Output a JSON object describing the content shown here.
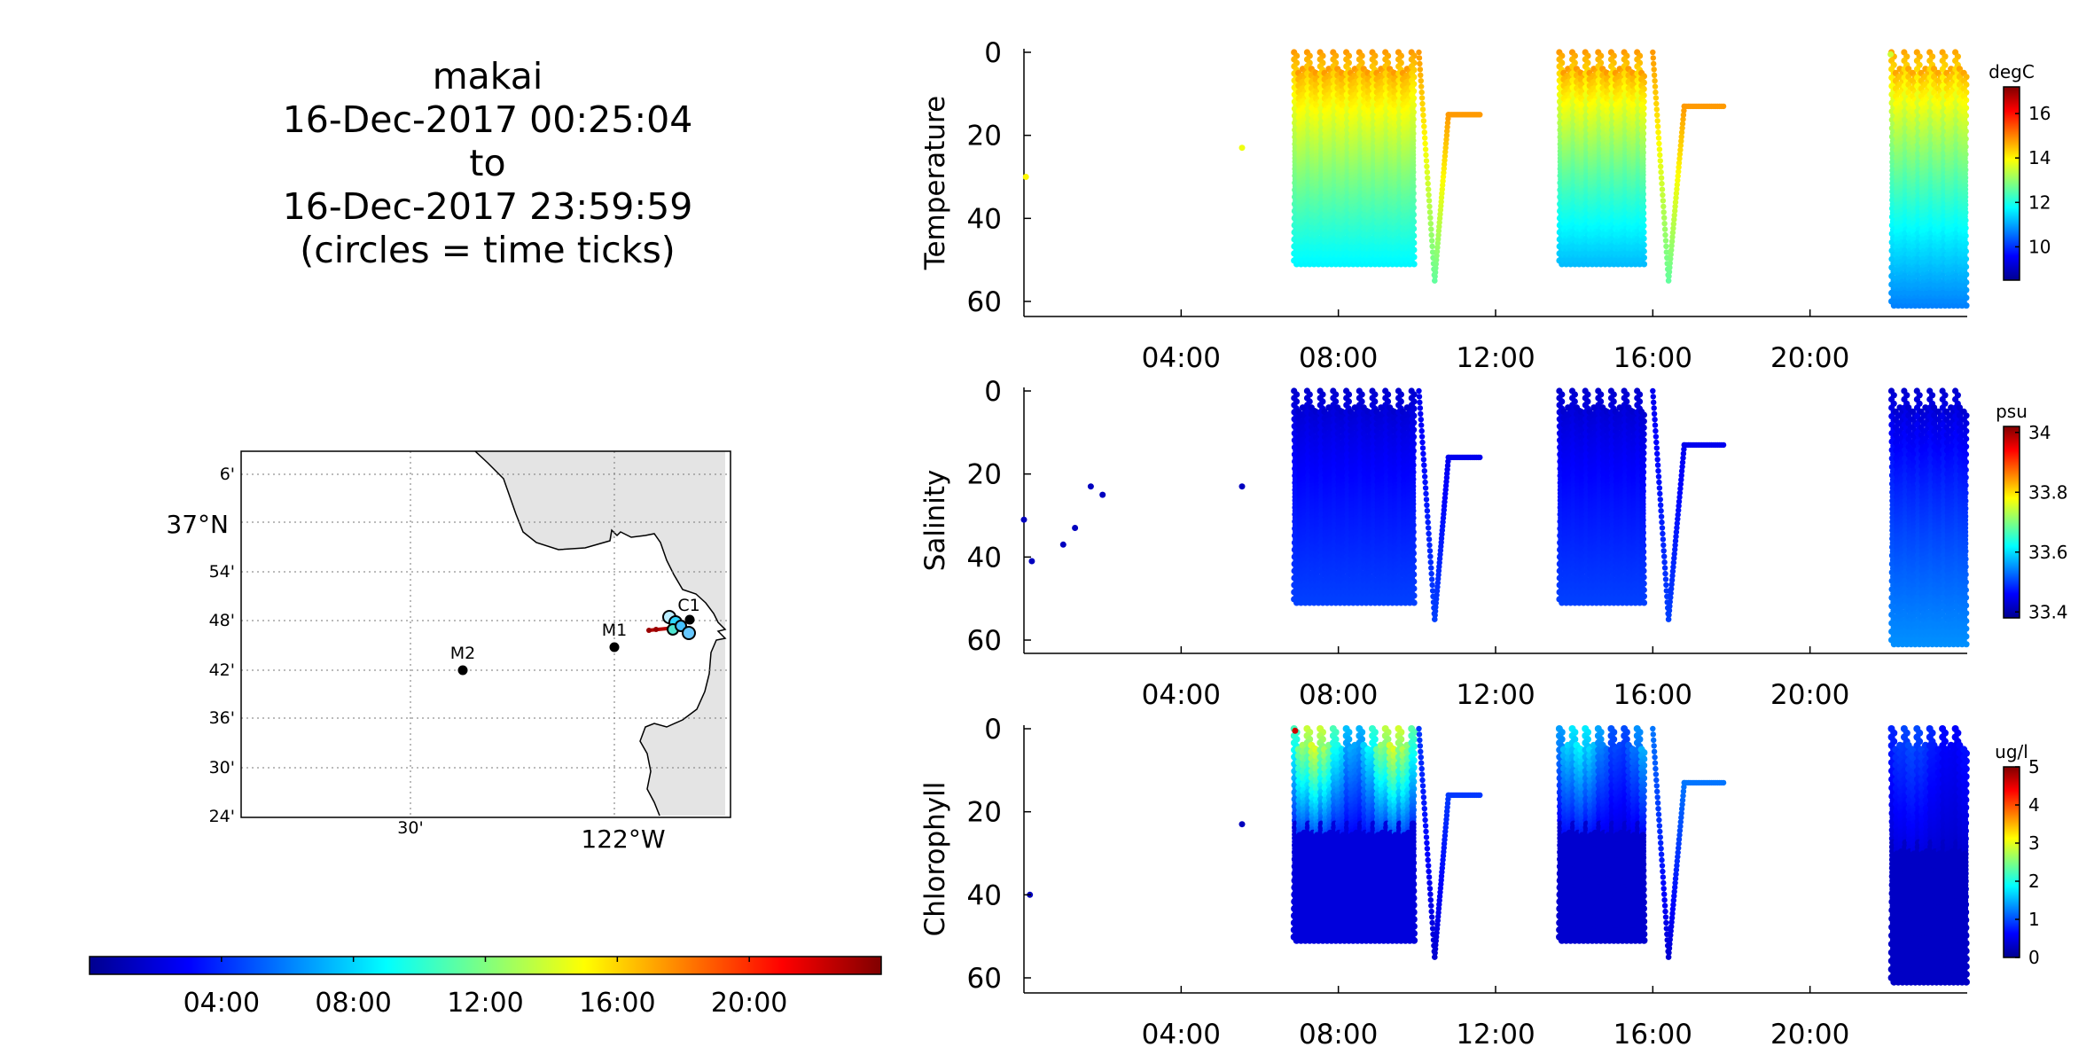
{
  "title": {
    "line1": "makai",
    "line2": "16-Dec-2017 00:25:04",
    "line3": "to",
    "line4": "16-Dec-2017 23:59:59",
    "line5": "(circles = time ticks)"
  },
  "map": {
    "lat_labels": [
      "6'",
      "37°N",
      "54'",
      "48'",
      "42'",
      "36'",
      "30'",
      "24'"
    ],
    "lon_labels": [
      "30'",
      "122°W"
    ],
    "stations": [
      {
        "name": "M2"
      },
      {
        "name": "M1"
      },
      {
        "name": "C1"
      }
    ]
  },
  "time_colorbar": {
    "tick_labels": [
      "04:00",
      "08:00",
      "12:00",
      "16:00",
      "20:00"
    ],
    "colormap": "jet"
  },
  "chart_data": [
    {
      "type": "scatter",
      "title": "",
      "ylabel": "Temperature",
      "xlabel": "",
      "x_range_hours": [
        0,
        24
      ],
      "ylim": [
        63,
        0
      ],
      "y_reversed": true,
      "x_ticks": [
        "04:00",
        "08:00",
        "12:00",
        "16:00",
        "20:00"
      ],
      "y_ticks": [
        0,
        20,
        40,
        60
      ],
      "colorbar": {
        "unit": "degC",
        "ticks": [
          10,
          12,
          14,
          16
        ],
        "range": [
          8.5,
          17.2
        ]
      },
      "colormap": "jet",
      "profile_bursts": [
        {
          "start_h": 6.85,
          "end_h": 9.95,
          "depth": [
            0,
            51
          ],
          "surface_value": 14.8,
          "bottom_value": 11.7
        },
        {
          "start_h": 13.6,
          "end_h": 15.8,
          "depth": [
            0,
            51
          ],
          "surface_value": 14.8,
          "bottom_value": 11.2
        },
        {
          "start_h": 22.05,
          "end_h": 24.0,
          "depth": [
            0,
            61
          ],
          "surface_value": 14.7,
          "bottom_value": 10.7
        }
      ],
      "dives": [
        {
          "start_h": 10.05,
          "bottom_h": 10.45,
          "bottom_depth": 55,
          "end_h": 10.8,
          "surface_depth": 15,
          "level_end_h": 11.6,
          "surface_value": 14.8,
          "bottom_value": 12.6
        },
        {
          "start_h": 16.0,
          "bottom_h": 16.4,
          "bottom_depth": 55,
          "end_h": 16.8,
          "surface_depth": 13,
          "level_end_h": 17.8,
          "surface_value": 14.8,
          "bottom_value": 12.6
        }
      ],
      "isolated_points": [
        {
          "t_h": 0.05,
          "depth": 30,
          "value": 14.0
        },
        {
          "t_h": 5.55,
          "depth": 23,
          "value": 13.8
        },
        {
          "t_h": 22.05,
          "depth": 0.5,
          "value": 13.5
        }
      ]
    },
    {
      "type": "scatter",
      "title": "",
      "ylabel": "Salinity",
      "xlabel": "",
      "x_range_hours": [
        0,
        24
      ],
      "ylim": [
        63,
        0
      ],
      "y_reversed": true,
      "x_ticks": [
        "04:00",
        "08:00",
        "12:00",
        "16:00",
        "20:00"
      ],
      "y_ticks": [
        0,
        20,
        40,
        60
      ],
      "colorbar": {
        "unit": "psu",
        "ticks": [
          33.4,
          33.6,
          33.8,
          34
        ],
        "range": [
          33.38,
          34.02
        ]
      },
      "colormap": "jet",
      "profile_bursts": [
        {
          "start_h": 6.85,
          "end_h": 9.95,
          "depth": [
            0,
            51
          ],
          "surface_value": 33.43,
          "bottom_value": 33.5
        },
        {
          "start_h": 13.6,
          "end_h": 15.8,
          "depth": [
            0,
            51
          ],
          "surface_value": 33.43,
          "bottom_value": 33.5
        },
        {
          "start_h": 22.05,
          "end_h": 24.0,
          "depth": [
            0,
            61
          ],
          "surface_value": 33.43,
          "bottom_value": 33.55
        }
      ],
      "dives": [
        {
          "start_h": 10.05,
          "bottom_h": 10.45,
          "bottom_depth": 55,
          "end_h": 10.8,
          "surface_depth": 16,
          "level_end_h": 11.6,
          "surface_value": 33.45,
          "bottom_value": 33.5
        },
        {
          "start_h": 16.0,
          "bottom_h": 16.4,
          "bottom_depth": 55,
          "end_h": 16.8,
          "surface_depth": 13,
          "level_end_h": 17.8,
          "surface_value": 33.45,
          "bottom_value": 33.5
        }
      ],
      "isolated_points": [
        {
          "t_h": 0.0,
          "depth": 31,
          "value": 33.42
        },
        {
          "t_h": 0.2,
          "depth": 41,
          "value": 33.42
        },
        {
          "t_h": 1.0,
          "depth": 37,
          "value": 33.42
        },
        {
          "t_h": 1.3,
          "depth": 33,
          "value": 33.42
        },
        {
          "t_h": 1.7,
          "depth": 23,
          "value": 33.42
        },
        {
          "t_h": 2.0,
          "depth": 25,
          "value": 33.42
        },
        {
          "t_h": 5.55,
          "depth": 23,
          "value": 33.42
        }
      ]
    },
    {
      "type": "scatter",
      "title": "",
      "ylabel": "Chlorophyll",
      "xlabel": "",
      "x_range_hours": [
        0,
        24
      ],
      "ylim": [
        63,
        0
      ],
      "y_reversed": true,
      "x_ticks": [
        "04:00",
        "08:00",
        "12:00",
        "16:00",
        "20:00"
      ],
      "y_ticks": [
        0,
        20,
        40,
        60
      ],
      "colorbar": {
        "unit": "ug/l",
        "ticks": [
          0,
          1,
          2,
          3,
          4,
          5
        ],
        "range": [
          0,
          5
        ]
      },
      "colormap": "jet",
      "profile_bursts": [
        {
          "start_h": 6.85,
          "end_h": 9.95,
          "depth": [
            0,
            51
          ],
          "surface_value": 1.9,
          "bottom_value": 0.3
        },
        {
          "start_h": 13.6,
          "end_h": 15.8,
          "depth": [
            0,
            51
          ],
          "surface_value": 1.1,
          "bottom_value": 0.3
        },
        {
          "start_h": 22.05,
          "end_h": 24.0,
          "depth": [
            0,
            61
          ],
          "surface_value": 0.5,
          "bottom_value": 0.3
        }
      ],
      "dives": [
        {
          "start_h": 10.05,
          "bottom_h": 10.45,
          "bottom_depth": 55,
          "end_h": 10.8,
          "surface_depth": 16,
          "level_end_h": 11.6,
          "surface_value": 0.9,
          "bottom_value": 0.4
        },
        {
          "start_h": 16.0,
          "bottom_h": 16.4,
          "bottom_depth": 55,
          "end_h": 16.8,
          "surface_depth": 13,
          "level_end_h": 17.8,
          "surface_value": 1.2,
          "bottom_value": 0.4
        }
      ],
      "isolated_points": [
        {
          "t_h": 0.15,
          "depth": 40,
          "value": 0.3
        },
        {
          "t_h": 5.55,
          "depth": 23,
          "value": 0.3
        },
        {
          "t_h": 6.9,
          "depth": 0.5,
          "value": 4.6
        }
      ]
    }
  ]
}
